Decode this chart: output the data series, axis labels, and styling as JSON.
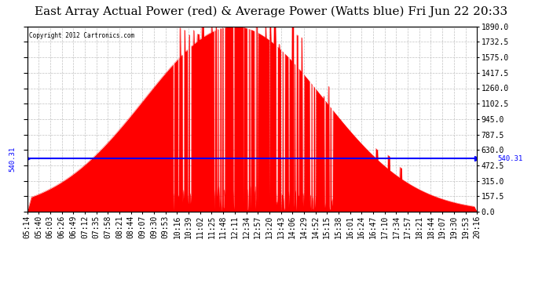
{
  "title": "East Array Actual Power (red) & Average Power (Watts blue) Fri Jun 22 20:33",
  "copyright": "Copyright 2012 Cartronics.com",
  "avg_power": 540.31,
  "avg_label": "540.31",
  "ymax": 1890.0,
  "ymin": 0.0,
  "yticks": [
    0.0,
    157.5,
    315.0,
    472.5,
    630.0,
    787.5,
    945.0,
    1102.5,
    1260.0,
    1417.5,
    1575.0,
    1732.5,
    1890.0
  ],
  "xtick_labels": [
    "05:14",
    "05:40",
    "06:03",
    "06:26",
    "06:49",
    "07:12",
    "07:35",
    "07:58",
    "08:21",
    "08:44",
    "09:07",
    "09:30",
    "09:53",
    "10:16",
    "10:39",
    "11:02",
    "11:25",
    "11:48",
    "12:11",
    "12:34",
    "12:57",
    "13:20",
    "13:43",
    "14:06",
    "14:29",
    "14:52",
    "15:15",
    "15:38",
    "16:01",
    "16:24",
    "16:47",
    "17:10",
    "17:34",
    "17:57",
    "18:21",
    "18:44",
    "19:07",
    "19:30",
    "19:53",
    "20:16"
  ],
  "fill_color": "#FF0000",
  "line_color": "#FF0000",
  "avg_line_color": "#0000FF",
  "background_color": "#FFFFFF",
  "grid_color": "#BBBBBB",
  "title_fontsize": 11,
  "tick_fontsize": 7
}
